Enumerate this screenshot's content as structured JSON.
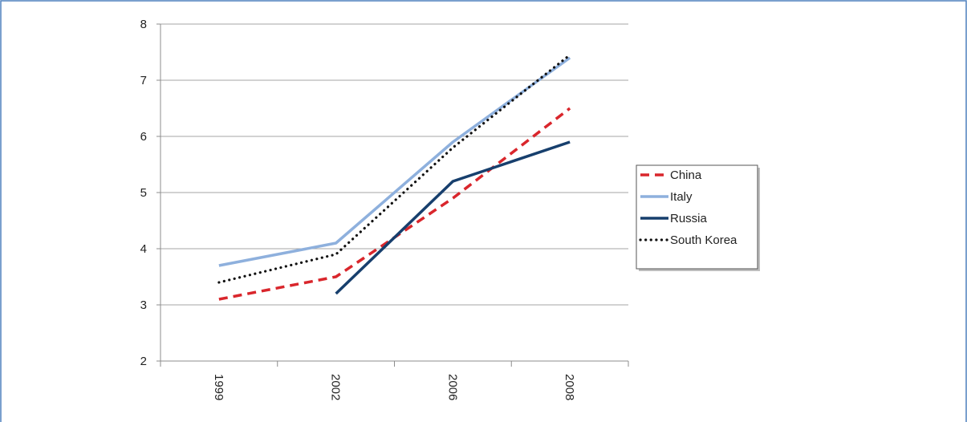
{
  "chart_data": {
    "type": "line",
    "title": "",
    "xlabel": "",
    "ylabel": "",
    "categories": [
      "1999",
      "2002",
      "2006",
      "2008"
    ],
    "ylim": [
      2,
      8
    ],
    "yticks": [
      "2",
      "3",
      "4",
      "5",
      "6",
      "7",
      "8"
    ],
    "grid": true,
    "legend_position": "right",
    "series": [
      {
        "name": "China",
        "values": [
          3.1,
          3.5,
          4.9,
          6.5
        ],
        "color": "#d9262c",
        "style": "dashed"
      },
      {
        "name": "Italy",
        "values": [
          3.7,
          4.1,
          5.9,
          7.4
        ],
        "color": "#8eb0dd",
        "style": "solid"
      },
      {
        "name": "Russia",
        "values": [
          null,
          3.2,
          5.2,
          5.9
        ],
        "color": "#173f6d",
        "style": "solid"
      },
      {
        "name": "South Korea",
        "values": [
          3.4,
          3.9,
          5.8,
          7.45
        ],
        "color": "#111111",
        "style": "dotted"
      }
    ]
  },
  "colors": {
    "frame_border": "#4f81bd",
    "gridline": "#a6a6a6",
    "axis": "#8c8c8c"
  }
}
